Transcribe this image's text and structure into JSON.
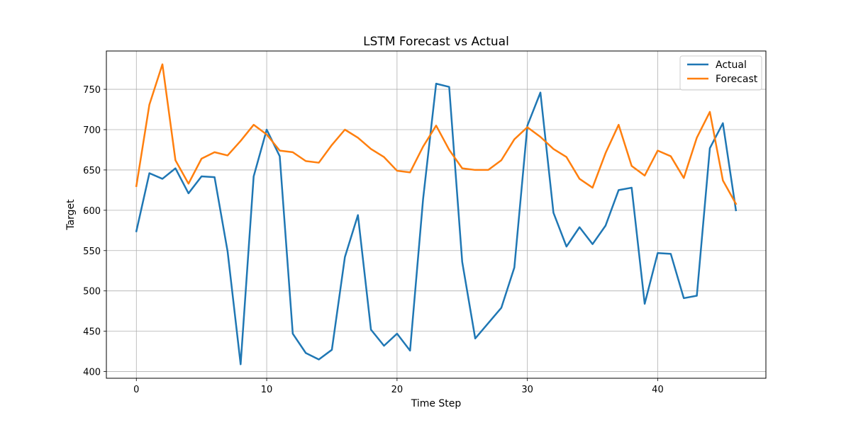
{
  "chart_data": {
    "type": "line",
    "title": "LSTM Forecast vs Actual",
    "xlabel": "Time Step",
    "ylabel": "Target",
    "xlim": [
      -2.3,
      48.3
    ],
    "ylim": [
      391.7,
      797.5
    ],
    "xticks": [
      0,
      10,
      20,
      30,
      40
    ],
    "yticks": [
      400,
      450,
      500,
      550,
      600,
      650,
      700,
      750
    ],
    "grid": true,
    "legend_position": "top-right",
    "series": [
      {
        "name": "Actual",
        "color": "#1f77b4",
        "x": [
          0,
          1,
          2,
          3,
          4,
          5,
          6,
          7,
          8,
          9,
          10,
          11,
          12,
          13,
          14,
          15,
          16,
          17,
          18,
          19,
          20,
          21,
          22,
          23,
          24,
          25,
          26,
          27,
          28,
          29,
          30,
          31,
          32,
          33,
          34,
          35,
          36,
          37,
          38,
          39,
          40,
          41,
          42,
          43,
          44,
          45,
          46
        ],
        "values": [
          574,
          646,
          639,
          652,
          621,
          642,
          641,
          549,
          409,
          642,
          700,
          667,
          447,
          423,
          415,
          427,
          542,
          594,
          452,
          432,
          447,
          426,
          614,
          757,
          753,
          536,
          441,
          460,
          479,
          529,
          705,
          746,
          597,
          555,
          579,
          558,
          581,
          625,
          628,
          484,
          547,
          546,
          491,
          494,
          677,
          708,
          600
        ]
      },
      {
        "name": "Forecast",
        "color": "#ff7f0e",
        "x": [
          0,
          1,
          2,
          3,
          4,
          5,
          6,
          7,
          8,
          9,
          10,
          11,
          12,
          13,
          14,
          15,
          16,
          17,
          18,
          19,
          20,
          21,
          22,
          23,
          24,
          25,
          26,
          27,
          28,
          29,
          30,
          31,
          32,
          33,
          34,
          35,
          36,
          37,
          38,
          39,
          40,
          41,
          42,
          43,
          44,
          45,
          46
        ],
        "values": [
          630,
          731,
          781,
          662,
          633,
          664,
          672,
          668,
          686,
          706,
          694,
          674,
          672,
          661,
          659,
          681,
          700,
          690,
          676,
          666,
          649,
          647,
          679,
          705,
          675,
          652,
          650,
          650,
          662,
          688,
          703,
          691,
          676,
          666,
          639,
          628,
          671,
          706,
          655,
          643,
          674,
          667,
          640,
          690,
          722,
          637,
          608
        ]
      }
    ]
  }
}
